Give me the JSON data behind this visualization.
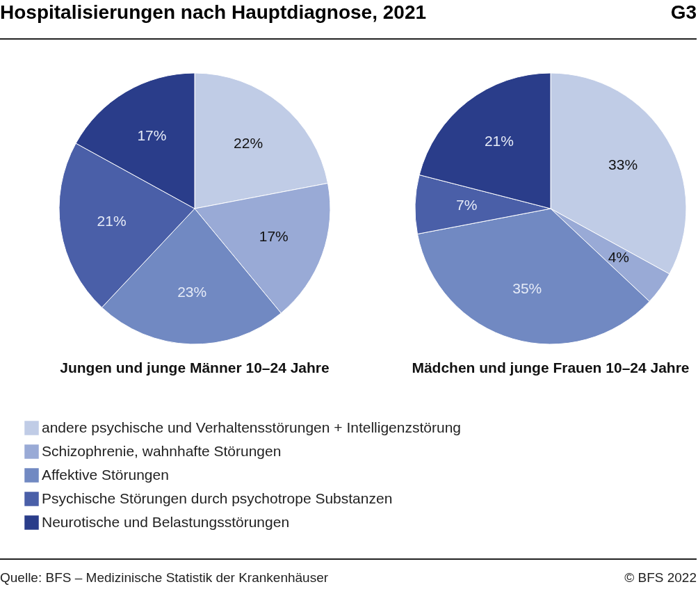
{
  "chart_data": [
    {
      "type": "pie",
      "title": "Hospitalisierungen nach Hauptdiagnose, 2021",
      "xlabel": "Jungen und junge Männer 10–24 Jahre",
      "categories": [
        "andere psychische und Verhaltensstörungen + Intelligenzstörung",
        "Schizophrenie, wahnhafte Störungen",
        "Affektive Störungen",
        "Psychische Störungen durch psychotrope Substanzen",
        "Neurotische und Belastungsstörungen"
      ],
      "values": [
        22,
        17,
        23,
        21,
        17
      ],
      "value_labels": [
        "22%",
        "17%",
        "23%",
        "21%",
        "17%"
      ],
      "colors": [
        "#c0cce6",
        "#99aad6",
        "#7189c2",
        "#4a5fa8",
        "#2a3d8a"
      ],
      "legend": "bottom",
      "annotations": [
        "G3",
        "Quelle: BFS – Medizinische Statistik der Krankenhäuser",
        "© BFS 2022"
      ]
    },
    {
      "type": "pie",
      "xlabel": "Mädchen und junge Frauen 10–24 Jahre",
      "categories": [
        null,
        null,
        null,
        null,
        null
      ],
      "values": [
        33,
        4,
        35,
        7,
        21
      ],
      "value_labels": [
        "33%",
        "4%",
        "35%",
        "7%",
        "21%"
      ],
      "colors": [
        "#c0cce6",
        "#99aad6",
        "#7189c2",
        "#4a5fa8",
        "#2a3d8a"
      ]
    }
  ]
}
